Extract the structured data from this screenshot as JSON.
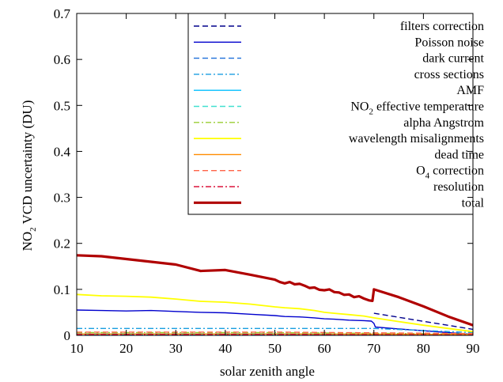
{
  "chart_data": {
    "type": "line",
    "xlabel": "solar zenith angle",
    "ylabel": {
      "prefix": "NO",
      "sub": "2",
      "suffix": " VCD uncertainty (DU)"
    },
    "xlim": [
      10,
      90
    ],
    "ylim": [
      0,
      0.7
    ],
    "xticks": [
      10,
      20,
      30,
      40,
      50,
      60,
      70,
      80,
      90
    ],
    "yticks": [
      0,
      0.1,
      0.2,
      0.3,
      0.4,
      0.5,
      0.6,
      0.7
    ],
    "ytick_labels": [
      "0",
      "0.1",
      "0.2",
      "0.3",
      "0.4",
      "0.5",
      "0.6",
      "0.7"
    ],
    "grid": false,
    "legend_position": "top-right",
    "series": [
      {
        "name": "filters correction",
        "color": "#00008b",
        "dash": "dashed",
        "width": 1.4,
        "x": [
          10,
          70,
          90
        ],
        "y": [
          0.001,
          0.001,
          0.001
        ],
        "x2": [
          70,
          90
        ],
        "y2": [
          0.048,
          0.013
        ]
      },
      {
        "name": "Poisson noise",
        "color": "#0000cd",
        "dash": "solid",
        "width": 1.4,
        "x": [
          10,
          15,
          20,
          25,
          30,
          35,
          40,
          45,
          50,
          52,
          55,
          58,
          60,
          62,
          65,
          68,
          69.5,
          70,
          70.3,
          75,
          80,
          85,
          90
        ],
        "y": [
          0.055,
          0.054,
          0.053,
          0.054,
          0.052,
          0.05,
          0.049,
          0.046,
          0.043,
          0.041,
          0.04,
          0.038,
          0.036,
          0.035,
          0.033,
          0.032,
          0.031,
          0.026,
          0.018,
          0.014,
          0.01,
          0.006,
          0.002
        ]
      },
      {
        "name": "dark current",
        "color": "#1e6fd9",
        "dash": "dashed",
        "width": 1.4,
        "x": [
          10,
          50,
          90
        ],
        "y": [
          0.002,
          0.002,
          0.001
        ]
      },
      {
        "name": "cross sections",
        "color": "#1a9ee0",
        "dash": "dashdot",
        "width": 1.4,
        "x": [
          10,
          50,
          70,
          90
        ],
        "y": [
          0.015,
          0.015,
          0.015,
          0.006
        ]
      },
      {
        "name": "AMF",
        "color": "#00bfff",
        "dash": "solid",
        "width": 1.4,
        "x": [
          10,
          50,
          90
        ],
        "y": [
          0.003,
          0.003,
          0.002
        ]
      },
      {
        "name": "NO2 effective temperature",
        "label_prefix": "NO",
        "label_sub": "2",
        "label_suffix": " effective temperature",
        "color": "#40e0d0",
        "dash": "dashed",
        "width": 1.4,
        "x": [
          10,
          50,
          90
        ],
        "y": [
          0.004,
          0.004,
          0.002
        ]
      },
      {
        "name": "alpha Angstrom",
        "color": "#9acd32",
        "dash": "dashdot",
        "width": 1.4,
        "x": [
          10,
          50,
          90
        ],
        "y": [
          0.006,
          0.006,
          0.003
        ]
      },
      {
        "name": "wavelength misalignments",
        "color": "#ffff00",
        "dash": "solid",
        "width": 1.8,
        "x": [
          10,
          15,
          20,
          25,
          30,
          35,
          40,
          45,
          50,
          52,
          55,
          58,
          60,
          62,
          65,
          68,
          70,
          75,
          80,
          85,
          90
        ],
        "y": [
          0.089,
          0.086,
          0.085,
          0.083,
          0.079,
          0.074,
          0.072,
          0.068,
          0.062,
          0.06,
          0.058,
          0.054,
          0.05,
          0.048,
          0.045,
          0.042,
          0.038,
          0.03,
          0.022,
          0.015,
          0.008
        ]
      },
      {
        "name": "dead time",
        "color": "#ff8c00",
        "dash": "solid",
        "width": 1.4,
        "x": [
          10,
          50,
          90
        ],
        "y": [
          0.003,
          0.003,
          0.002
        ]
      },
      {
        "name": "O4 correction",
        "label_prefix": "O",
        "label_sub": "4",
        "label_suffix": " correction",
        "color": "#ff6347",
        "dash": "dashed",
        "width": 1.4,
        "x": [
          10,
          50,
          90
        ],
        "y": [
          0.007,
          0.007,
          0.004
        ]
      },
      {
        "name": "resolution",
        "color": "#dc143c",
        "dash": "dashdot",
        "width": 1.4,
        "x": [
          10,
          50,
          90
        ],
        "y": [
          0.002,
          0.002,
          0.001
        ]
      },
      {
        "name": "total",
        "color": "#b00000",
        "dash": "solid",
        "width": 3.2,
        "x": [
          10,
          15,
          20,
          25,
          30,
          35,
          40,
          45,
          50,
          51,
          52,
          53,
          54,
          55,
          56,
          57,
          58,
          59,
          60,
          61,
          62,
          63,
          64,
          65,
          66,
          67,
          68,
          69,
          69.7,
          70,
          75,
          80,
          85,
          90
        ],
        "y": [
          0.174,
          0.172,
          0.166,
          0.16,
          0.154,
          0.14,
          0.142,
          0.132,
          0.121,
          0.116,
          0.113,
          0.116,
          0.111,
          0.112,
          0.108,
          0.103,
          0.104,
          0.099,
          0.098,
          0.1,
          0.094,
          0.093,
          0.088,
          0.089,
          0.083,
          0.085,
          0.08,
          0.076,
          0.075,
          0.1,
          0.083,
          0.063,
          0.041,
          0.022
        ]
      }
    ]
  }
}
